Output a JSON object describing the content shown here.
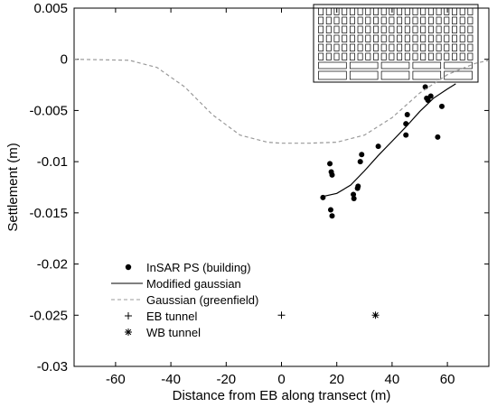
{
  "chart_data": {
    "type": "scatter",
    "xlabel": "Distance from EB along transect (m)",
    "ylabel": "Settlement (m)",
    "xlim": [
      -75,
      75
    ],
    "ylim": [
      -0.03,
      0.005
    ],
    "x_ticks": [
      -60,
      -40,
      -20,
      0,
      20,
      40,
      60
    ],
    "x_tick_labels": [
      "-60",
      "-40",
      "-20",
      "0",
      "20",
      "40",
      "60"
    ],
    "y_ticks": [
      0.005,
      0,
      -0.005,
      -0.01,
      -0.015,
      -0.02,
      -0.025,
      -0.03
    ],
    "y_tick_labels": [
      "0.005",
      "0",
      "-0.005",
      "-0.01",
      "-0.015",
      "-0.02",
      "-0.025",
      "-0.03"
    ],
    "grid": false,
    "legend_position": "lower-left",
    "legend": [
      {
        "label": "InSAR PS (building)",
        "marker": "dot"
      },
      {
        "label": "Modified gaussian",
        "marker": "solid-line"
      },
      {
        "label": "Gaussian (greenfield)",
        "marker": "dashed-line"
      },
      {
        "label": "EB tunnel",
        "marker": "plus"
      },
      {
        "label": "WB tunnel",
        "marker": "asterisk"
      }
    ],
    "series": [
      {
        "name": "InSAR PS (building)",
        "kind": "scatter",
        "points": [
          [
            15,
            -0.0135
          ],
          [
            17.5,
            -0.0102
          ],
          [
            18,
            -0.011
          ],
          [
            18.3,
            -0.0113
          ],
          [
            17.8,
            -0.0147
          ],
          [
            18.3,
            -0.0153
          ],
          [
            26,
            -0.0132
          ],
          [
            26.2,
            -0.0136
          ],
          [
            27.5,
            -0.0126
          ],
          [
            27.7,
            -0.0124
          ],
          [
            28.5,
            -0.01
          ],
          [
            29,
            -0.0093
          ],
          [
            35,
            -0.0085
          ],
          [
            45,
            -0.0074
          ],
          [
            45,
            -0.0063
          ],
          [
            45.5,
            -0.0054
          ],
          [
            52,
            -0.0027
          ],
          [
            52.5,
            -0.0038
          ],
          [
            53,
            -0.004
          ],
          [
            54,
            -0.0036
          ],
          [
            56.5,
            -0.0076
          ],
          [
            58,
            -0.0046
          ]
        ]
      },
      {
        "name": "Modified gaussian",
        "kind": "line",
        "style": "solid",
        "points": [
          [
            15,
            -0.0134
          ],
          [
            20,
            -0.0131
          ],
          [
            25,
            -0.0123
          ],
          [
            30,
            -0.0109
          ],
          [
            35,
            -0.0094
          ],
          [
            40,
            -0.008
          ],
          [
            45,
            -0.0066
          ],
          [
            50,
            -0.0051
          ],
          [
            55,
            -0.0038
          ],
          [
            60,
            -0.0029
          ],
          [
            63,
            -0.0024
          ]
        ]
      },
      {
        "name": "Gaussian (greenfield)",
        "kind": "line",
        "style": "dashed",
        "points": [
          [
            -75,
            0
          ],
          [
            -55,
            -0.0001
          ],
          [
            -45,
            -0.0008
          ],
          [
            -35,
            -0.0027
          ],
          [
            -25,
            -0.0054
          ],
          [
            -15,
            -0.0074
          ],
          [
            -5,
            -0.0081
          ],
          [
            0,
            -0.0082
          ],
          [
            10,
            -0.0082
          ],
          [
            20,
            -0.0081
          ],
          [
            30,
            -0.0074
          ],
          [
            40,
            -0.0057
          ],
          [
            50,
            -0.0033
          ],
          [
            60,
            -0.0015
          ],
          [
            70,
            -0.0004
          ],
          [
            75,
            -0.0001
          ]
        ]
      },
      {
        "name": "EB tunnel",
        "kind": "marker",
        "marker": "plus",
        "points": [
          [
            0,
            -0.025
          ]
        ]
      },
      {
        "name": "WB tunnel",
        "kind": "marker",
        "marker": "asterisk",
        "points": [
          [
            34,
            -0.025
          ]
        ]
      }
    ]
  }
}
